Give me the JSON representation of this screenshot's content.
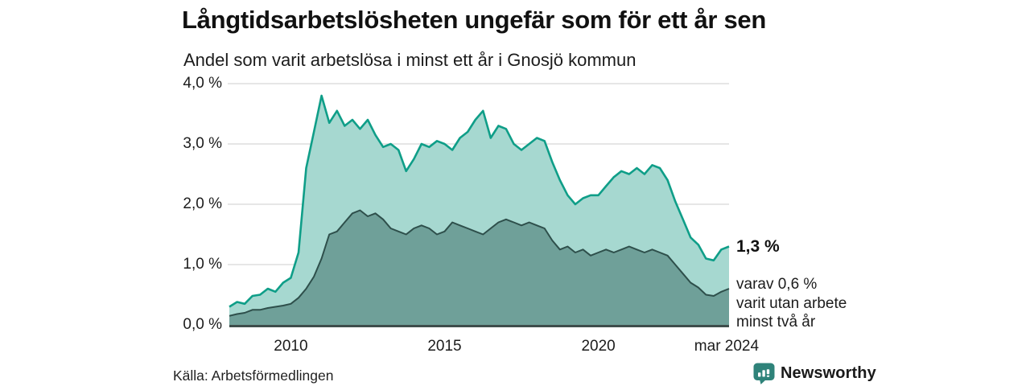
{
  "title": "Långtidsarbetslösheten ungefär som för ett år sen",
  "subtitle": "Andel som varit arbetslösa i minst ett år i Gnosjö kommun",
  "source": "Källa: Arbetsförmedlingen",
  "annotation": {
    "value": "1,3 %",
    "line1": "varav 0,6 %",
    "line2": "varit utan arbete",
    "line3": "minst två år"
  },
  "logo": {
    "brand": "Newsworthy",
    "icon": "bar-chart-speech-bubble-icon",
    "color": "#2f837a"
  },
  "colors": {
    "background": "#ffffff",
    "gridline": "#d8d8d8",
    "baseline": "#3e4d4b",
    "title_text": "#111111",
    "body_text": "#1c1c1c"
  },
  "chart_data": {
    "type": "area",
    "title": "Långtidsarbetslösheten ungefär som för ett år sen",
    "subtitle": "Andel som varit arbetslösa i minst ett år i Gnosjö kommun",
    "unit": "%",
    "xlim": [
      2008.0,
      2024.25
    ],
    "ylim": [
      0,
      4.15
    ],
    "grid": true,
    "x_ticks": [
      {
        "value": 2010,
        "label": "2010"
      },
      {
        "value": 2015,
        "label": "2015"
      },
      {
        "value": 2020,
        "label": "2020"
      },
      {
        "value": 2024.17,
        "label": "mar 2024"
      }
    ],
    "y_ticks": [
      {
        "value": 0,
        "label": "0,0 %"
      },
      {
        "value": 1,
        "label": "1,0 %"
      },
      {
        "value": 2,
        "label": "2,0 %"
      },
      {
        "value": 3,
        "label": "3,0 %"
      },
      {
        "value": 4,
        "label": "4,0 %"
      }
    ],
    "x": [
      2008,
      2008.25,
      2008.5,
      2008.75,
      2009,
      2009.25,
      2009.5,
      2009.75,
      2010,
      2010.25,
      2010.5,
      2010.75,
      2011,
      2011.25,
      2011.5,
      2011.75,
      2012,
      2012.25,
      2012.5,
      2012.75,
      2013,
      2013.25,
      2013.5,
      2013.75,
      2014,
      2014.25,
      2014.5,
      2014.75,
      2015,
      2015.25,
      2015.5,
      2015.75,
      2016,
      2016.25,
      2016.5,
      2016.75,
      2017,
      2017.25,
      2017.5,
      2017.75,
      2018,
      2018.25,
      2018.5,
      2018.75,
      2019,
      2019.25,
      2019.5,
      2019.75,
      2020,
      2020.25,
      2020.5,
      2020.75,
      2021,
      2021.25,
      2021.5,
      2021.75,
      2022,
      2022.25,
      2022.5,
      2022.75,
      2023,
      2023.25,
      2023.5,
      2023.75,
      2024,
      2024.25
    ],
    "series": [
      {
        "name": "Andel arbetslösa minst ett år",
        "end_label": "1,3 %",
        "line_color": "#0f9e88",
        "fill_color": "#a6d8d0",
        "line_width": 2.6,
        "values": [
          0.3,
          0.38,
          0.35,
          0.48,
          0.5,
          0.6,
          0.55,
          0.7,
          0.78,
          1.2,
          2.6,
          3.2,
          3.8,
          3.35,
          3.55,
          3.3,
          3.4,
          3.25,
          3.4,
          3.15,
          2.95,
          3.0,
          2.9,
          2.55,
          2.75,
          3.0,
          2.95,
          3.05,
          3.0,
          2.9,
          3.1,
          3.2,
          3.4,
          3.55,
          3.1,
          3.3,
          3.25,
          3.0,
          2.9,
          3.0,
          3.1,
          3.05,
          2.7,
          2.4,
          2.15,
          2.0,
          2.1,
          2.15,
          2.15,
          2.3,
          2.45,
          2.55,
          2.5,
          2.6,
          2.5,
          2.65,
          2.6,
          2.4,
          2.05,
          1.75,
          1.45,
          1.33,
          1.1,
          1.07,
          1.25,
          1.3
        ]
      },
      {
        "name": "Varav utan arbete minst två år",
        "end_label": "0,6 %",
        "line_color": "#2e4f4b",
        "fill_color": "#6fa099",
        "line_width": 2,
        "values": [
          0.15,
          0.18,
          0.2,
          0.25,
          0.25,
          0.28,
          0.3,
          0.32,
          0.35,
          0.45,
          0.6,
          0.8,
          1.1,
          1.5,
          1.55,
          1.7,
          1.85,
          1.9,
          1.8,
          1.85,
          1.75,
          1.6,
          1.55,
          1.5,
          1.6,
          1.65,
          1.6,
          1.5,
          1.55,
          1.7,
          1.65,
          1.6,
          1.55,
          1.5,
          1.6,
          1.7,
          1.75,
          1.7,
          1.65,
          1.7,
          1.65,
          1.6,
          1.4,
          1.25,
          1.3,
          1.2,
          1.25,
          1.15,
          1.2,
          1.25,
          1.2,
          1.25,
          1.3,
          1.25,
          1.2,
          1.25,
          1.2,
          1.15,
          1.0,
          0.85,
          0.7,
          0.62,
          0.5,
          0.48,
          0.55,
          0.6
        ]
      }
    ],
    "legend_position": "none"
  }
}
